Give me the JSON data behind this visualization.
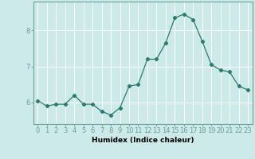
{
  "title": "",
  "xlabel": "Humidex (Indice chaleur)",
  "x": [
    0,
    1,
    2,
    3,
    4,
    5,
    6,
    7,
    8,
    9,
    10,
    11,
    12,
    13,
    14,
    15,
    16,
    17,
    18,
    19,
    20,
    21,
    22,
    23
  ],
  "y": [
    6.05,
    5.9,
    5.95,
    5.95,
    6.2,
    5.95,
    5.95,
    5.75,
    5.65,
    5.85,
    6.45,
    6.5,
    7.2,
    7.2,
    7.65,
    8.35,
    8.45,
    8.3,
    7.7,
    7.05,
    6.9,
    6.85,
    6.45,
    6.35
  ],
  "line_color": "#2d7a6e",
  "marker": "D",
  "marker_size": 2.2,
  "bg_color": "#cceaea",
  "grid_color": "#ffffff",
  "ylim": [
    5.4,
    8.8
  ],
  "yticks": [
    6,
    7,
    8
  ],
  "label_fontsize": 6.5,
  "tick_fontsize": 6.0,
  "spine_color": "#6a9e98"
}
